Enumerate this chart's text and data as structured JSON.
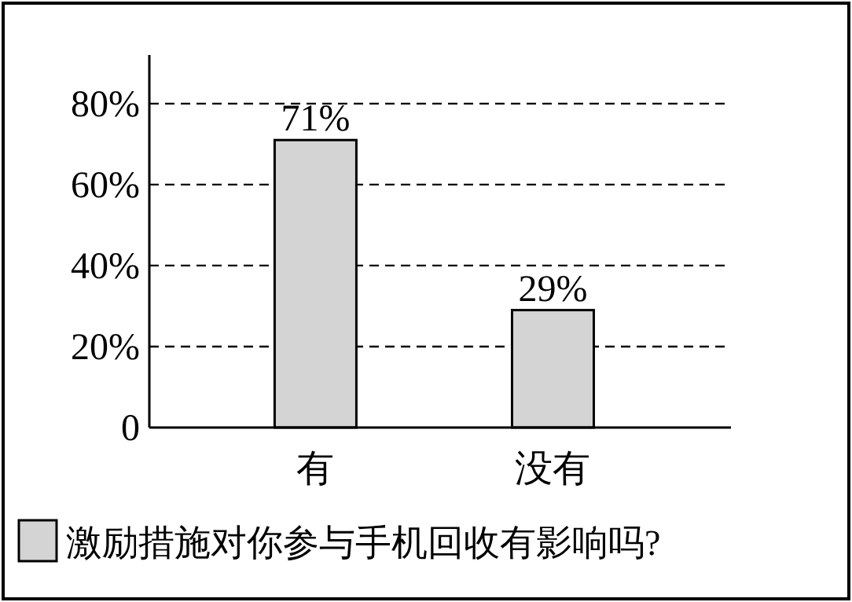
{
  "chart_data": {
    "type": "bar",
    "categories": [
      "有",
      "没有"
    ],
    "series": [
      {
        "name": "激励措施对你参与手机回收有影响吗?",
        "color": "#d4d4d4",
        "values": [
          71,
          29
        ]
      }
    ],
    "value_labels": [
      "71%",
      "29%"
    ],
    "ylim": [
      0,
      92
    ],
    "yticks": [
      0,
      {
        "value": 20,
        "label": "20%"
      },
      {
        "value": 40,
        "label": "40%"
      },
      {
        "value": 60,
        "label": "60%"
      },
      {
        "value": 80,
        "label": "80%"
      }
    ],
    "grid": "y",
    "legend": "bottom"
  }
}
